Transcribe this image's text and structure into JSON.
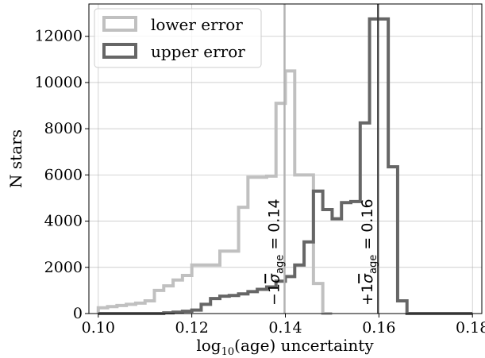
{
  "chart_data": {
    "type": "histogram",
    "xlabel_prefix": "log",
    "xlabel_sub": "10",
    "xlabel_suffix": "(age) uncertainty",
    "ylabel": "N stars",
    "xlim": [
      0.098,
      0.182
    ],
    "ylim": [
      0,
      13400
    ],
    "xticks": [
      0.1,
      0.12,
      0.14,
      0.16,
      0.18
    ],
    "xtick_labels": [
      "0.10",
      "0.12",
      "0.14",
      "0.16",
      "0.18"
    ],
    "yticks": [
      0,
      2000,
      4000,
      6000,
      8000,
      10000,
      12000
    ],
    "ytick_labels": [
      "0",
      "2000",
      "4000",
      "6000",
      "8000",
      "10000",
      "12000"
    ],
    "grid": true,
    "legend_position": "top-left",
    "bin_width": 0.002,
    "series": [
      {
        "name": "lower error",
        "color": "#c0c0c0",
        "bin_edges": [
          0.1,
          0.102,
          0.104,
          0.106,
          0.108,
          0.11,
          0.112,
          0.114,
          0.116,
          0.118,
          0.12,
          0.122,
          0.124,
          0.126,
          0.128,
          0.13,
          0.132,
          0.134,
          0.136,
          0.138,
          0.14,
          0.142,
          0.144,
          0.146,
          0.148,
          0.15
        ],
        "values": [
          250,
          300,
          350,
          400,
          450,
          550,
          1000,
          1200,
          1450,
          1650,
          2100,
          2100,
          2100,
          2700,
          2700,
          4600,
          5900,
          5900,
          5950,
          9100,
          10500,
          6000,
          6000,
          1300,
          0
        ]
      },
      {
        "name": "upper error",
        "color": "#666666",
        "bin_edges": [
          0.1,
          0.102,
          0.104,
          0.106,
          0.108,
          0.11,
          0.112,
          0.114,
          0.116,
          0.118,
          0.12,
          0.122,
          0.124,
          0.126,
          0.128,
          0.13,
          0.132,
          0.134,
          0.136,
          0.138,
          0.14,
          0.142,
          0.144,
          0.146,
          0.148,
          0.15,
          0.152,
          0.154,
          0.156,
          0.158,
          0.16,
          0.162,
          0.164,
          0.166,
          0.168,
          0.17,
          0.172,
          0.174,
          0.176,
          0.178,
          0.18
        ],
        "values": [
          0,
          0,
          0,
          0,
          0,
          0,
          0,
          30,
          60,
          100,
          150,
          400,
          650,
          750,
          780,
          850,
          950,
          1050,
          1150,
          1400,
          1600,
          2100,
          3100,
          5300,
          4500,
          4100,
          4800,
          4850,
          8250,
          12750,
          12750,
          6350,
          550,
          0,
          0,
          0,
          0,
          0,
          0,
          0
        ]
      }
    ],
    "vlines": [
      {
        "x": 0.1398,
        "color": "#b3b3b3",
        "label_prefix": "−1",
        "label_sub": "age",
        "label_suffix": " = 0.14"
      },
      {
        "x": 0.1598,
        "color": "#404040",
        "label_prefix": "+1",
        "label_sub": "age",
        "label_suffix": " = 0.16"
      }
    ]
  }
}
